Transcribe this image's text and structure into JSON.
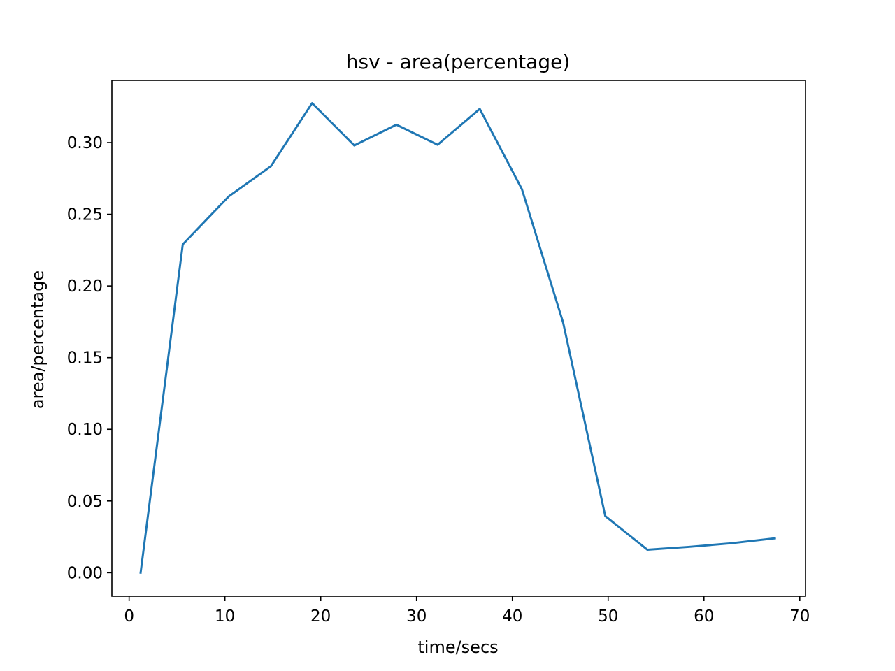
{
  "chart_data": {
    "type": "line",
    "title": "hsv - area(percentage)",
    "xlabel": "time/secs",
    "ylabel": "area/percentage",
    "xlim": [
      -1.8,
      70.6
    ],
    "ylim": [
      -0.0164,
      0.3434
    ],
    "xticks": [
      0,
      10,
      20,
      30,
      40,
      50,
      60,
      70
    ],
    "xtick_labels": [
      "0",
      "10",
      "20",
      "30",
      "40",
      "50",
      "60",
      "70"
    ],
    "yticks": [
      0.0,
      0.05,
      0.1,
      0.15,
      0.2,
      0.25,
      0.3
    ],
    "ytick_labels": [
      "0.00",
      "0.05",
      "0.10",
      "0.15",
      "0.20",
      "0.25",
      "0.30"
    ],
    "grid": false,
    "series": [
      {
        "color": "#1f77b4",
        "x": [
          1.2,
          5.6,
          10.4,
          14.8,
          19.1,
          23.5,
          27.9,
          32.2,
          36.6,
          41.0,
          45.3,
          49.7,
          54.1,
          58.4,
          62.8,
          67.4
        ],
        "y": [
          0.0,
          0.229,
          0.2625,
          0.2835,
          0.3275,
          0.298,
          0.3125,
          0.2985,
          0.3235,
          0.2675,
          0.1745,
          0.0395,
          0.016,
          0.018,
          0.0205,
          0.024
        ]
      }
    ]
  }
}
